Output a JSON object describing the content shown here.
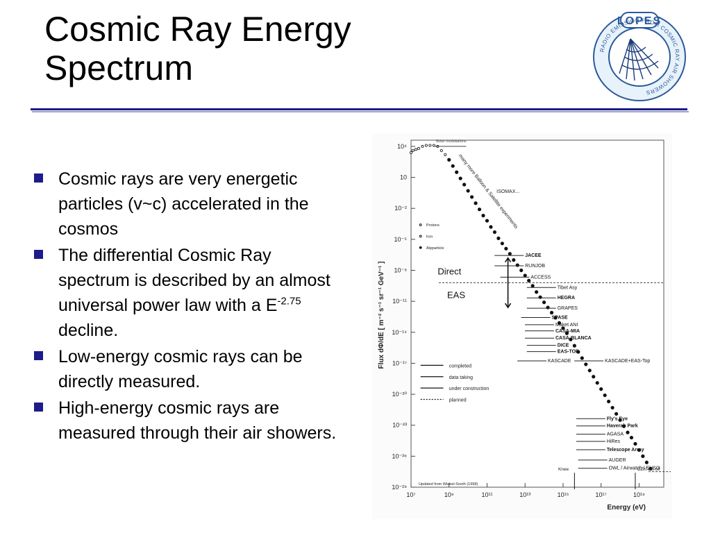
{
  "slide": {
    "title_line1": "Cosmic Ray Energy",
    "title_line2": "Spectrum",
    "bullets": [
      {
        "text": "Cosmic rays are very energetic particles (v~c) accelerated in the cosmos"
      },
      {
        "pre": "The differential Cosmic Ray spectrum is described by an almost universal power law with a E",
        "sup": "-2.75",
        "post": " decline."
      },
      {
        "text": "Low-energy cosmic rays can be directly measured."
      },
      {
        "text": "High-energy cosmic rays are measured through their air showers."
      }
    ],
    "colors": {
      "accent": "#1c1c8a"
    }
  },
  "logo": {
    "name": "LOPES",
    "ring_text": "RADIO EMISSION FROM COSMIC RAY AIR SHOWERS"
  },
  "chart_data": {
    "type": "scatter",
    "ylabel": "Flux dΦ/dE [ m⁻² s⁻¹ sr⁻¹ GeV⁻¹ ]",
    "xlabel": "Energy (eV)",
    "x_scale": "log",
    "y_scale": "log",
    "x_ticks": [
      "10⁷",
      "10⁹",
      "10¹¹",
      "10¹³",
      "10¹⁵",
      "10¹⁷",
      "10¹⁹"
    ],
    "y_ticks": [
      "10⁴",
      "10",
      "10⁻²",
      "10⁻⁵",
      "10⁻⁸",
      "10⁻¹¹",
      "10⁻¹⁴",
      "10⁻¹⁷",
      "10⁻²⁰",
      "10⁻²³",
      "10⁻²⁶",
      "10⁻²⁹"
    ],
    "x_log_range": [
      7,
      20.3
    ],
    "y_log_range": [
      -29,
      4.6
    ],
    "legend_species": [
      "Protons",
      "Iron",
      "Alpparticle"
    ],
    "legend_lines": [
      "completed",
      "data taking",
      "under construction",
      "planned"
    ],
    "annotations": {
      "solar": "Solar modulations",
      "balloon": "many more Balloon & Satellite experiments",
      "isomax": "ISOMAX...",
      "direct": "Direct",
      "eas": "EAS",
      "knee": "Knee",
      "gzk": "GZK cut-off",
      "source": "Updated from Wiebel-Sooth (1998)"
    },
    "experiments": [
      {
        "label": "JACEE",
        "bold": true,
        "lx": 13.0,
        "ly": -6.5
      },
      {
        "label": "RUNJOB",
        "bold": false,
        "lx": 13.0,
        "ly": -7.5
      },
      {
        "label": "ACCESS",
        "bold": false,
        "lx": 13.3,
        "ly": -8.6
      },
      {
        "label": "Tibet Asy",
        "bold": false,
        "lx": 14.7,
        "ly": -9.6
      },
      {
        "label": "HEGRA",
        "bold": true,
        "lx": 14.7,
        "ly": -10.6
      },
      {
        "label": "GRAPES",
        "bold": false,
        "lx": 14.7,
        "ly": -11.6
      },
      {
        "label": "SPASE",
        "bold": true,
        "lx": 14.4,
        "ly": -12.5
      },
      {
        "label": "Maket ANI",
        "bold": false,
        "lx": 14.6,
        "ly": -13.2
      },
      {
        "label": "CASA-MIA",
        "bold": true,
        "lx": 14.6,
        "ly": -13.8
      },
      {
        "label": "CASA-BLANCA",
        "bold": true,
        "lx": 14.6,
        "ly": -14.5
      },
      {
        "label": "DICE",
        "bold": true,
        "lx": 14.7,
        "ly": -15.2
      },
      {
        "label": "EAS-TOP",
        "bold": true,
        "lx": 14.7,
        "ly": -15.8
      },
      {
        "label": "KASCADE",
        "bold": false,
        "lx": 14.2,
        "ly": -16.7
      },
      {
        "label": "KASCADE+EAS-Top",
        "bold": false,
        "lx": 17.2,
        "ly": -16.7
      },
      {
        "label": "Fly's Eye",
        "bold": true,
        "lx": 17.3,
        "ly": -22.3
      },
      {
        "label": "Haverah Park",
        "bold": true,
        "lx": 17.3,
        "ly": -23.0
      },
      {
        "label": "AGASA",
        "bold": false,
        "lx": 17.3,
        "ly": -23.8
      },
      {
        "label": "HiRes",
        "bold": false,
        "lx": 17.3,
        "ly": -24.5
      },
      {
        "label": "Telescope Array",
        "bold": true,
        "lx": 17.3,
        "ly": -25.3
      },
      {
        "label": "AUGER",
        "bold": false,
        "lx": 17.4,
        "ly": -26.3
      },
      {
        "label": "OWL / Airwatch / EUSO",
        "bold": false,
        "lx": 17.4,
        "ly": -27.1
      }
    ],
    "points": [
      [
        7.0,
        3.4
      ],
      [
        7.1,
        3.6
      ],
      [
        7.25,
        3.7
      ],
      [
        7.4,
        3.8
      ],
      [
        7.6,
        4.0
      ],
      [
        7.8,
        4.1
      ],
      [
        8.0,
        4.1
      ],
      [
        8.2,
        4.1
      ],
      [
        8.4,
        4.0
      ],
      [
        8.6,
        3.6
      ],
      [
        8.8,
        3.2
      ],
      [
        9.0,
        2.7
      ],
      [
        9.2,
        2.1
      ],
      [
        9.4,
        1.5
      ],
      [
        9.6,
        0.9
      ],
      [
        9.8,
        0.3
      ],
      [
        10.0,
        -0.3
      ],
      [
        10.2,
        -0.9
      ],
      [
        10.4,
        -1.5
      ],
      [
        10.6,
        -2.1
      ],
      [
        10.8,
        -2.7
      ],
      [
        11.0,
        -3.2
      ],
      [
        11.2,
        -3.8
      ],
      [
        11.4,
        -4.3
      ],
      [
        11.6,
        -4.9
      ],
      [
        11.8,
        -5.4
      ],
      [
        12.0,
        -5.9
      ],
      [
        12.2,
        -6.4
      ],
      [
        12.4,
        -7.0
      ],
      [
        12.6,
        -7.5
      ],
      [
        12.8,
        -8.0
      ],
      [
        13.0,
        -8.5
      ],
      [
        13.2,
        -9.0
      ],
      [
        13.4,
        -9.5
      ],
      [
        13.6,
        -10.1
      ],
      [
        13.8,
        -10.6
      ],
      [
        14.0,
        -11.1
      ],
      [
        14.2,
        -11.6
      ],
      [
        14.4,
        -12.1
      ],
      [
        14.6,
        -12.6
      ],
      [
        14.8,
        -13.1
      ],
      [
        15.0,
        -13.6
      ],
      [
        15.2,
        -14.1
      ],
      [
        15.4,
        -14.7
      ],
      [
        15.6,
        -15.3
      ],
      [
        15.8,
        -15.9
      ],
      [
        16.0,
        -16.5
      ],
      [
        16.2,
        -17.1
      ],
      [
        16.4,
        -17.7
      ],
      [
        16.6,
        -18.3
      ],
      [
        16.8,
        -18.9
      ],
      [
        17.0,
        -19.5
      ],
      [
        17.2,
        -20.1
      ],
      [
        17.4,
        -20.7
      ],
      [
        17.6,
        -21.3
      ],
      [
        17.8,
        -21.9
      ],
      [
        18.0,
        -22.5
      ],
      [
        18.2,
        -23.1
      ],
      [
        18.4,
        -23.7
      ],
      [
        18.6,
        -24.2
      ],
      [
        18.8,
        -24.8
      ],
      [
        19.0,
        -25.4
      ],
      [
        19.2,
        -26.0
      ],
      [
        19.4,
        -26.6
      ],
      [
        19.6,
        -27.2
      ]
    ]
  }
}
